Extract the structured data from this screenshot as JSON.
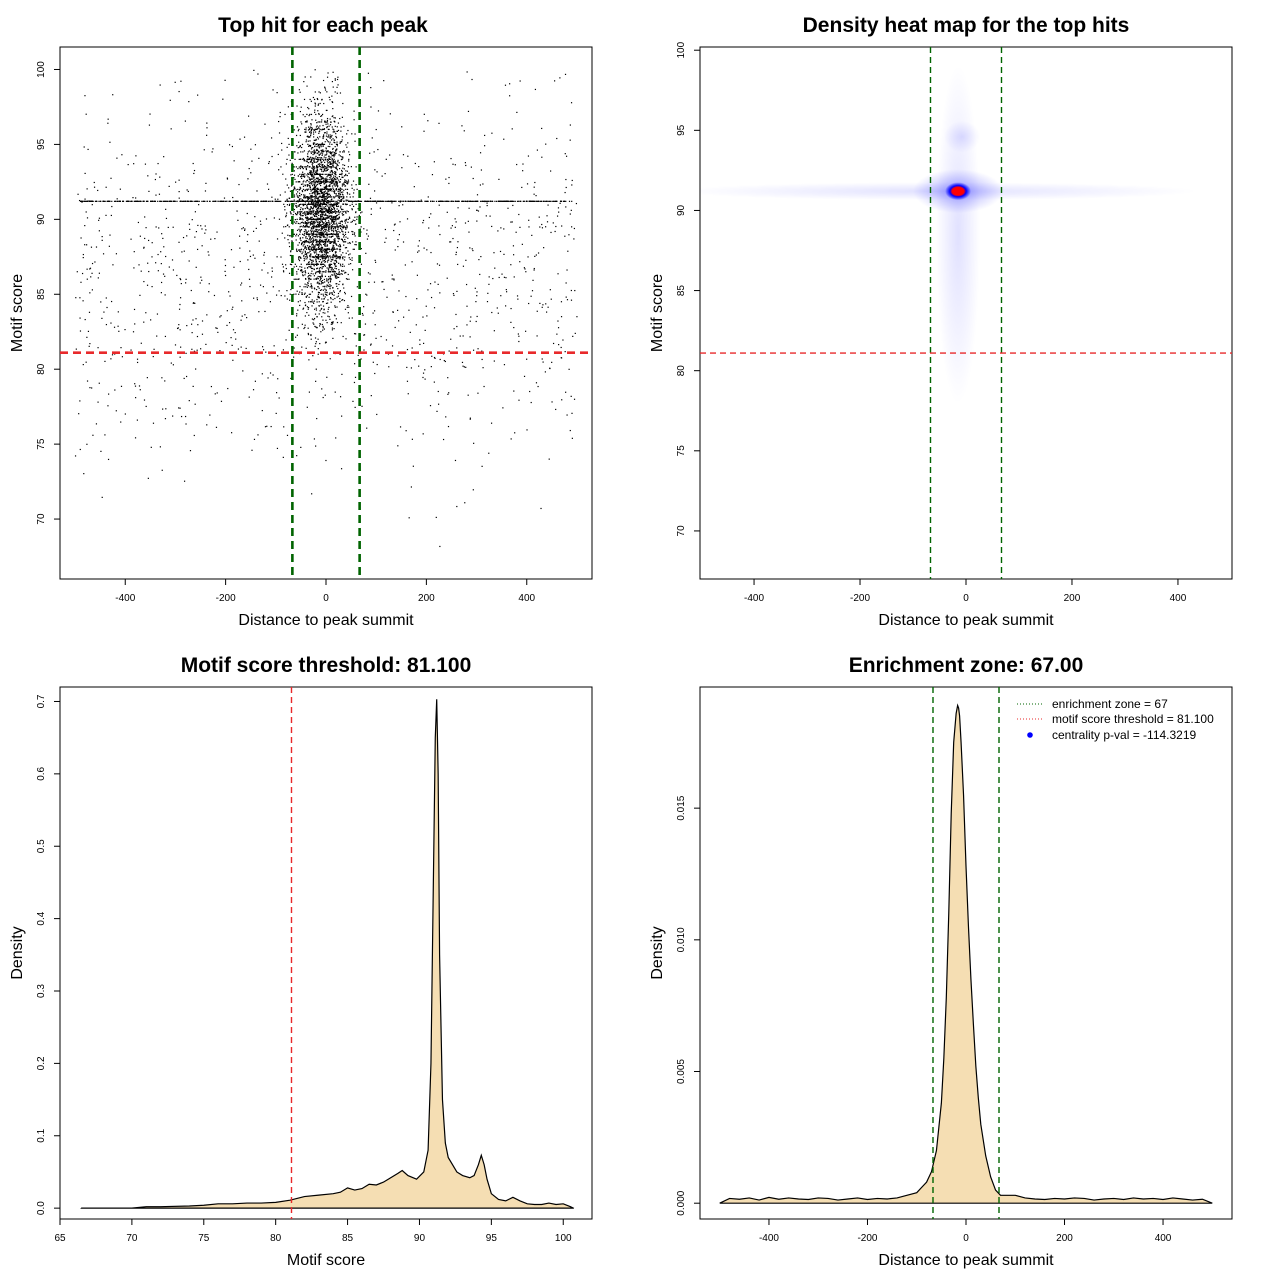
{
  "colors": {
    "green_line": "#006400",
    "red_line": "#e8292b",
    "density_fill": "#f5deb3",
    "point": "#000000",
    "heat_core": "#ff0000",
    "heat_mid": "#0000ff"
  },
  "chart_data": [
    {
      "id": "scatter",
      "type": "scatter",
      "title": "Top hit for each peak",
      "xlabel": "Distance to peak summit",
      "ylabel": "Motif score",
      "xlim": [
        -530,
        530
      ],
      "ylim": [
        66,
        101.5
      ],
      "xticks": [
        -400,
        -200,
        0,
        200,
        400
      ],
      "xtick_labels": [
        "-400",
        "-200",
        "0",
        "200",
        "400"
      ],
      "yticks": [
        70,
        75,
        80,
        85,
        90,
        95,
        100
      ],
      "ytick_labels": [
        "70",
        "75",
        "80",
        "85",
        "90",
        "95",
        "100"
      ],
      "vlines": [
        -67,
        67
      ],
      "hline": 81.1,
      "point_groups": [
        {
          "name": "central cluster",
          "count": 3200,
          "x_center": -10,
          "x_sd": 28,
          "y_center": 90.5,
          "y_sd": 3.2
        },
        {
          "name": "background",
          "count": 1150,
          "x_range": [
            -500,
            500
          ],
          "y_center": 86,
          "y_sd": 6
        },
        {
          "name": "score 91.2 band",
          "count": 700,
          "x_range": [
            -490,
            490
          ],
          "y_value": 91.2
        }
      ]
    },
    {
      "id": "heatmap",
      "type": "heatmap",
      "title": "Density heat map for the top hits",
      "xlabel": "Distance to peak summit",
      "ylabel": "Motif score",
      "xlim": [
        -502,
        502
      ],
      "ylim": [
        67,
        100.2
      ],
      "xticks": [
        -400,
        -200,
        0,
        200,
        400
      ],
      "xtick_labels": [
        "-400",
        "-200",
        "0",
        "200",
        "400"
      ],
      "yticks": [
        70,
        75,
        80,
        85,
        90,
        95,
        100
      ],
      "ytick_labels": [
        "70",
        "75",
        "80",
        "85",
        "90",
        "95",
        "100"
      ],
      "vlines": [
        -67,
        67
      ],
      "hline": 81.1,
      "peak": {
        "x": -15,
        "y": 91.2
      }
    },
    {
      "id": "score-density",
      "type": "area",
      "title": "Motif score threshold: 81.100",
      "xlabel": "Motif score",
      "ylabel": "Density",
      "xlim": [
        65,
        102
      ],
      "ylim": [
        -0.015,
        0.72
      ],
      "xticks": [
        65,
        70,
        75,
        80,
        85,
        90,
        95,
        100
      ],
      "xtick_labels": [
        "65",
        "70",
        "75",
        "80",
        "85",
        "90",
        "95",
        "100"
      ],
      "yticks": [
        0,
        0.1,
        0.2,
        0.3,
        0.4,
        0.5,
        0.6,
        0.7
      ],
      "ytick_labels": [
        "0.0",
        "0.1",
        "0.2",
        "0.3",
        "0.4",
        "0.5",
        "0.6",
        "0.7"
      ],
      "vlines": [
        81.1
      ],
      "x": [
        66.5,
        68,
        70,
        71,
        72,
        74,
        75,
        76,
        77,
        78,
        79,
        80,
        81,
        82,
        83,
        84,
        84.5,
        85,
        85.5,
        86,
        86.5,
        87,
        87.5,
        88,
        88.5,
        88.8,
        89.2,
        89.8,
        90.3,
        90.6,
        90.8,
        91,
        91.1,
        91.2,
        91.3,
        91.4,
        91.6,
        91.8,
        92,
        92.3,
        92.6,
        93,
        93.5,
        93.8,
        94.1,
        94.3,
        94.5,
        94.7,
        95,
        95.5,
        96,
        96.5,
        97,
        97.5,
        98,
        98.5,
        99,
        99.5,
        100,
        100.5,
        100.7
      ],
      "y": [
        0.0,
        0.0,
        0.0,
        0.002,
        0.002,
        0.003,
        0.004,
        0.006,
        0.006,
        0.007,
        0.007,
        0.008,
        0.011,
        0.016,
        0.018,
        0.02,
        0.022,
        0.028,
        0.025,
        0.027,
        0.033,
        0.032,
        0.036,
        0.042,
        0.048,
        0.052,
        0.045,
        0.04,
        0.05,
        0.08,
        0.2,
        0.5,
        0.65,
        0.703,
        0.6,
        0.35,
        0.15,
        0.09,
        0.07,
        0.06,
        0.05,
        0.045,
        0.042,
        0.045,
        0.06,
        0.073,
        0.06,
        0.04,
        0.02,
        0.012,
        0.01,
        0.015,
        0.01,
        0.006,
        0.005,
        0.005,
        0.007,
        0.005,
        0.006,
        0.002,
        0.0
      ]
    },
    {
      "id": "distance-density",
      "type": "area",
      "title": "Enrichment zone: 67.00",
      "xlabel": "Distance to peak summit",
      "ylabel": "Density",
      "xlim": [
        -540,
        540
      ],
      "ylim": [
        -0.0006,
        0.0196
      ],
      "xticks": [
        -400,
        -200,
        0,
        200,
        400
      ],
      "xtick_labels": [
        "-400",
        "-200",
        "0",
        "200",
        "400"
      ],
      "yticks": [
        0,
        0.005,
        0.01,
        0.015
      ],
      "ytick_labels": [
        "0.000",
        "0.005",
        "0.010",
        "0.015"
      ],
      "vlines": [
        -67,
        67
      ],
      "x": [
        -500,
        -480,
        -460,
        -440,
        -420,
        -400,
        -380,
        -360,
        -340,
        -320,
        -300,
        -280,
        -260,
        -240,
        -220,
        -200,
        -180,
        -160,
        -140,
        -120,
        -100,
        -90,
        -80,
        -70,
        -60,
        -50,
        -45,
        -40,
        -35,
        -30,
        -25,
        -20,
        -17,
        -15,
        -13,
        -10,
        -5,
        0,
        5,
        10,
        15,
        20,
        25,
        30,
        40,
        50,
        60,
        70,
        80,
        100,
        120,
        140,
        160,
        180,
        200,
        220,
        240,
        260,
        280,
        300,
        320,
        340,
        360,
        380,
        400,
        420,
        440,
        460,
        480,
        500
      ],
      "y": [
        0.0,
        0.00018,
        0.00015,
        0.0002,
        0.00012,
        0.00022,
        0.00015,
        0.0002,
        0.00016,
        0.00014,
        0.0002,
        0.00018,
        0.00012,
        0.00016,
        0.0002,
        0.00014,
        0.00018,
        0.00016,
        0.0002,
        0.0003,
        0.0004,
        0.0006,
        0.0008,
        0.0012,
        0.002,
        0.0038,
        0.0055,
        0.0078,
        0.011,
        0.0148,
        0.0175,
        0.0186,
        0.0189,
        0.0188,
        0.0185,
        0.0175,
        0.0155,
        0.0128,
        0.0105,
        0.0085,
        0.0068,
        0.0052,
        0.004,
        0.003,
        0.0018,
        0.001,
        0.0005,
        0.0003,
        0.0003,
        0.0003,
        0.0002,
        0.00016,
        0.00014,
        0.00018,
        0.00016,
        0.0002,
        0.00018,
        0.00012,
        0.00016,
        0.00018,
        0.00014,
        0.0002,
        0.00016,
        0.00018,
        0.00014,
        0.0002,
        0.00016,
        0.00012,
        0.00015,
        0.0
      ],
      "legend": [
        {
          "label": "enrichment zone = 67",
          "style": "dotted",
          "color": "#006400"
        },
        {
          "label": "motif score threshold = 81.100",
          "style": "dotted",
          "color": "#e8292b"
        },
        {
          "label": "centrality p-val = -114.3219",
          "style": "point",
          "color": "#0000ff"
        }
      ],
      "legend_position": "top-right"
    }
  ]
}
